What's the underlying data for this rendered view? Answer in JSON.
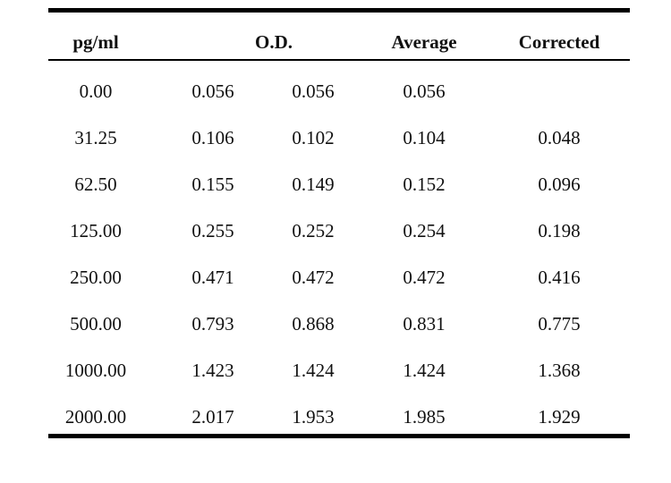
{
  "table": {
    "headers": {
      "conc": "pg/ml",
      "od": "O.D.",
      "average": "Average",
      "corrected": "Corrected"
    },
    "rows": [
      {
        "conc": "0.00",
        "od1": "0.056",
        "od2": "0.056",
        "average": "0.056",
        "corrected": ""
      },
      {
        "conc": "31.25",
        "od1": "0.106",
        "od2": "0.102",
        "average": "0.104",
        "corrected": "0.048"
      },
      {
        "conc": "62.50",
        "od1": "0.155",
        "od2": "0.149",
        "average": "0.152",
        "corrected": "0.096"
      },
      {
        "conc": "125.00",
        "od1": "0.255",
        "od2": "0.252",
        "average": "0.254",
        "corrected": "0.198"
      },
      {
        "conc": "250.00",
        "od1": "0.471",
        "od2": "0.472",
        "average": "0.472",
        "corrected": "0.416"
      },
      {
        "conc": "500.00",
        "od1": "0.793",
        "od2": "0.868",
        "average": "0.831",
        "corrected": "0.775"
      },
      {
        "conc": "1000.00",
        "od1": "1.423",
        "od2": "1.424",
        "average": "1.424",
        "corrected": "1.368"
      },
      {
        "conc": "2000.00",
        "od1": "2.017",
        "od2": "1.953",
        "average": "1.985",
        "corrected": "1.929"
      }
    ]
  }
}
